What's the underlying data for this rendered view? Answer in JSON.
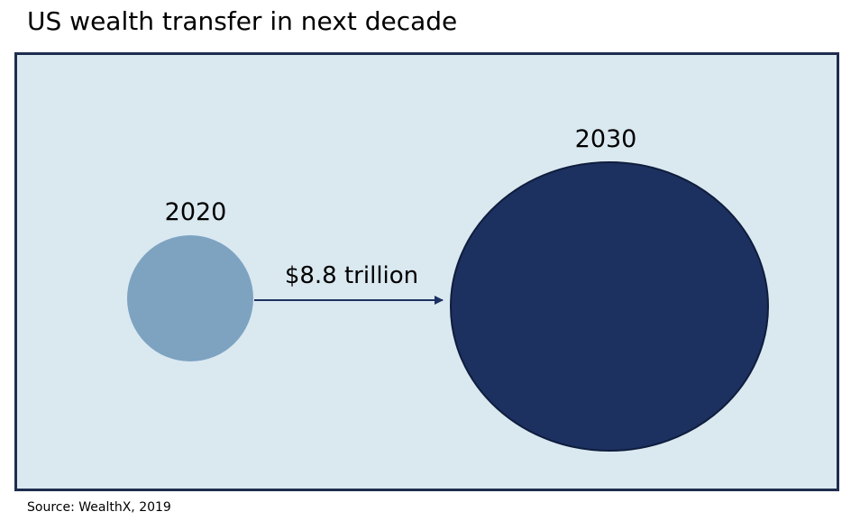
{
  "title": "US wealth transfer in next decade",
  "diagram": {
    "start_label": "2020",
    "end_label": "2030",
    "arrow_label": "$8.8 trillion"
  },
  "colors": {
    "panel_background": "#dae8f0",
    "panel_border": "#1f2d4e",
    "small_circle": "#7da3c1",
    "large_circle": "#1c3160",
    "arrow": "#1c3160"
  },
  "source": "Source: WealthX, 2019"
}
